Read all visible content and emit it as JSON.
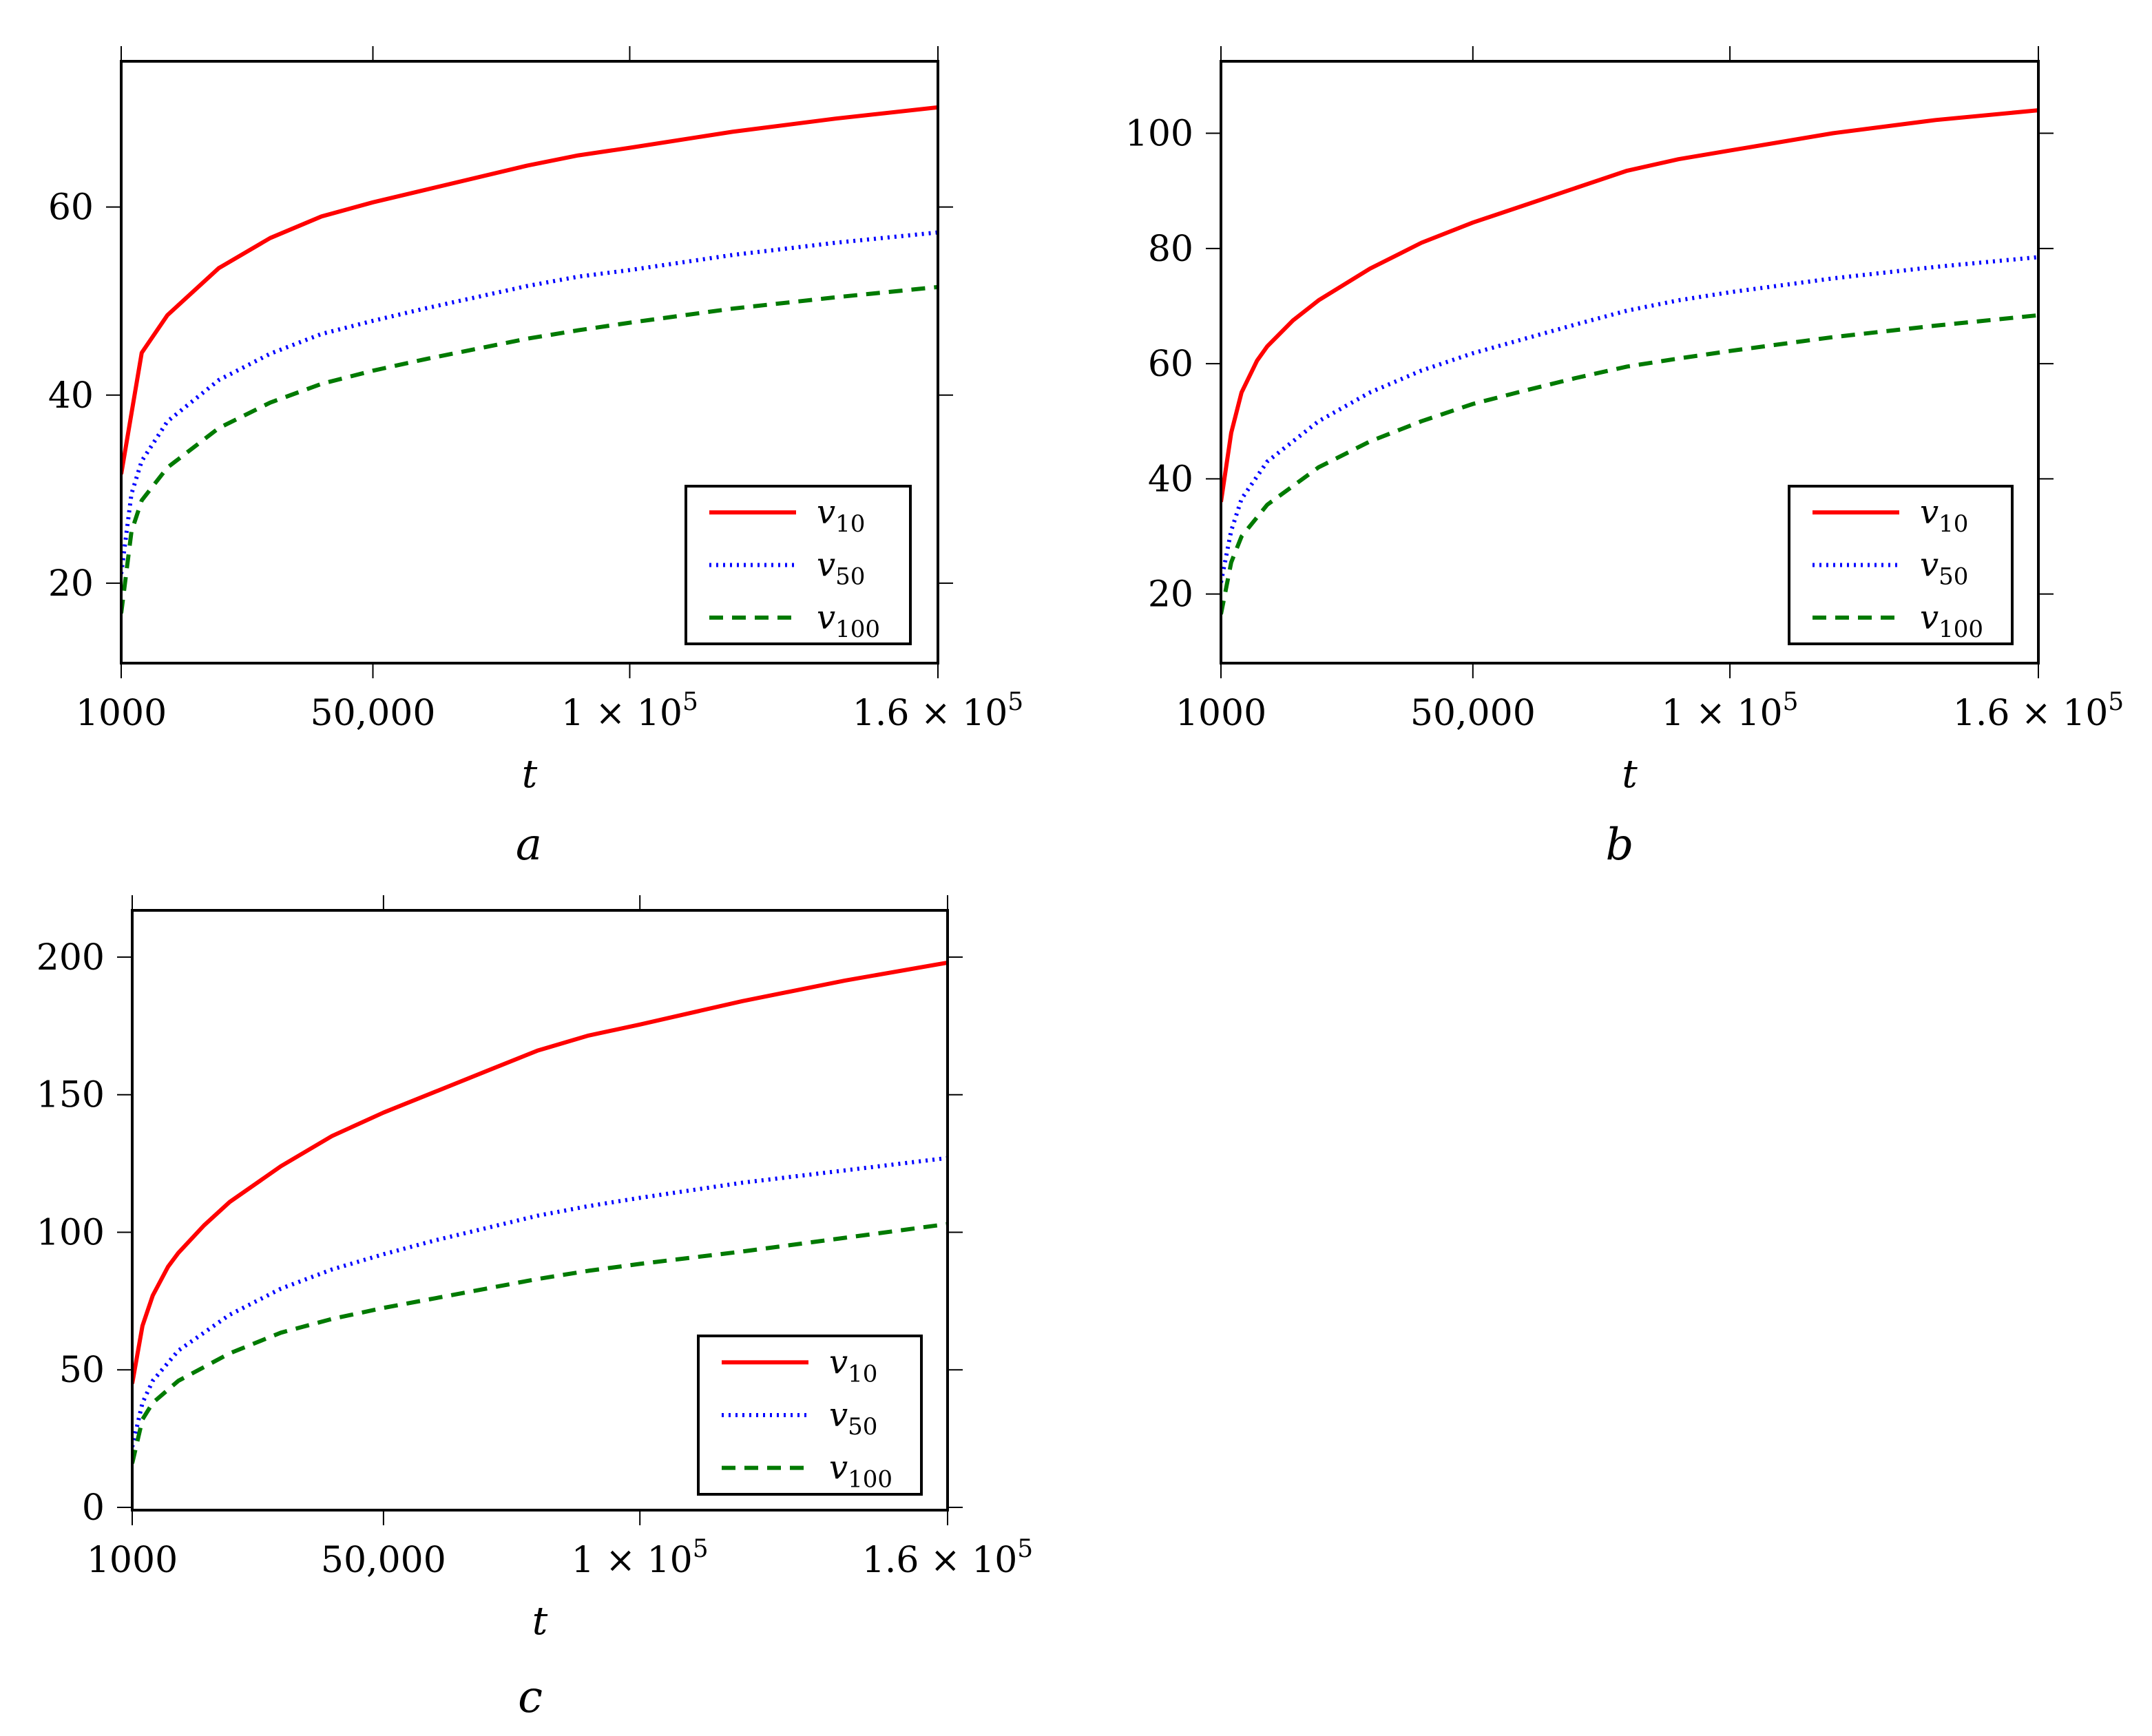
{
  "chart_data": [
    {
      "id": "a",
      "type": "line",
      "caption": "a",
      "xlabel": "t",
      "ylabel": "",
      "xlim": [
        1000,
        160000
      ],
      "ylim": [
        11.5,
        75.5
      ],
      "x_ticks": [
        {
          "value": 1000,
          "label": "1000",
          "math": false
        },
        {
          "value": 50000,
          "label": "50,000",
          "math": false
        },
        {
          "value": 100000,
          "label": "1 × 10^5",
          "mant": "1",
          "exp": "5",
          "math": true
        },
        {
          "value": 160000,
          "label": "1.6 × 10^5",
          "mant": "1.6",
          "exp": "5",
          "math": true
        }
      ],
      "y_ticks": [
        20,
        40,
        60
      ],
      "legend_position": "bottom-right",
      "series": [
        {
          "name": "v10",
          "base": "v",
          "sub": "10",
          "color": "#ff0000",
          "style": "solid",
          "x": [
            1000,
            5000,
            10000,
            20000,
            30000,
            40000,
            50000,
            60000,
            70000,
            80000,
            90000,
            100000,
            120000,
            140000,
            160000
          ],
          "y": [
            31.6,
            44.5,
            48.5,
            53.5,
            56.7,
            59.0,
            60.5,
            61.8,
            63.1,
            64.4,
            65.5,
            66.3,
            68.0,
            69.4,
            70.6
          ]
        },
        {
          "name": "v50",
          "base": "v",
          "sub": "50",
          "color": "#0000ff",
          "style": "dotted",
          "x": [
            1000,
            3000,
            5000,
            10000,
            20000,
            30000,
            40000,
            50000,
            60000,
            70000,
            80000,
            90000,
            100000,
            120000,
            140000,
            160000
          ],
          "y": [
            21.0,
            29.5,
            33.0,
            37.2,
            41.6,
            44.4,
            46.5,
            47.9,
            49.2,
            50.4,
            51.6,
            52.6,
            53.3,
            54.9,
            56.2,
            57.3
          ]
        },
        {
          "name": "v100",
          "base": "v",
          "sub": "100",
          "color": "#007a00",
          "style": "dashed",
          "x": [
            1000,
            3000,
            5000,
            10000,
            20000,
            30000,
            40000,
            50000,
            60000,
            70000,
            80000,
            90000,
            100000,
            120000,
            140000,
            160000
          ],
          "y": [
            16.8,
            25.5,
            28.8,
            32.3,
            36.5,
            39.2,
            41.2,
            42.6,
            43.8,
            44.9,
            46.0,
            46.9,
            47.7,
            49.2,
            50.4,
            51.5
          ]
        }
      ]
    },
    {
      "id": "b",
      "type": "line",
      "caption": "b",
      "xlabel": "t",
      "ylabel": "",
      "xlim": [
        1000,
        160000
      ],
      "ylim": [
        8,
        112.5
      ],
      "x_ticks": [
        {
          "value": 1000,
          "label": "1000",
          "math": false
        },
        {
          "value": 50000,
          "label": "50,000",
          "math": false
        },
        {
          "value": 100000,
          "label": "1 × 10^5",
          "mant": "1",
          "exp": "5",
          "math": true
        },
        {
          "value": 160000,
          "label": "1.6 × 10^5",
          "mant": "1.6",
          "exp": "5",
          "math": true
        }
      ],
      "y_ticks": [
        20,
        40,
        60,
        80,
        100
      ],
      "legend_position": "bottom-right",
      "series": [
        {
          "name": "v10",
          "base": "v",
          "sub": "10",
          "color": "#ff0000",
          "style": "solid",
          "x": [
            1000,
            3000,
            5000,
            8000,
            10000,
            15000,
            20000,
            30000,
            40000,
            50000,
            60000,
            70000,
            80000,
            90000,
            100000,
            120000,
            140000,
            160000
          ],
          "y": [
            36.0,
            48.0,
            55.0,
            60.5,
            63.0,
            67.5,
            71.0,
            76.5,
            81.0,
            84.5,
            87.5,
            90.5,
            93.5,
            95.5,
            97.0,
            100.0,
            102.3,
            104.0
          ]
        },
        {
          "name": "v50",
          "base": "v",
          "sub": "50",
          "color": "#0000ff",
          "style": "dotted",
          "x": [
            1000,
            3000,
            5000,
            10000,
            20000,
            30000,
            40000,
            50000,
            60000,
            70000,
            80000,
            90000,
            100000,
            120000,
            140000,
            160000
          ],
          "y": [
            22.0,
            31.0,
            36.5,
            43.0,
            50.0,
            55.0,
            58.8,
            61.8,
            64.3,
            66.8,
            69.2,
            71.0,
            72.4,
            74.8,
            76.8,
            78.5
          ]
        },
        {
          "name": "v100",
          "base": "v",
          "sub": "100",
          "color": "#007a00",
          "style": "dashed",
          "x": [
            1000,
            3000,
            5000,
            10000,
            20000,
            30000,
            40000,
            50000,
            60000,
            70000,
            80000,
            90000,
            100000,
            120000,
            140000,
            160000
          ],
          "y": [
            16.5,
            25.5,
            30.0,
            35.5,
            42.0,
            46.5,
            50.0,
            53.0,
            55.3,
            57.5,
            59.5,
            60.9,
            62.2,
            64.6,
            66.6,
            68.4
          ]
        }
      ]
    },
    {
      "id": "c",
      "type": "line",
      "caption": "c",
      "xlabel": "t",
      "ylabel": "",
      "xlim": [
        1000,
        160000
      ],
      "ylim": [
        -1,
        217
      ],
      "x_ticks": [
        {
          "value": 1000,
          "label": "1000",
          "math": false
        },
        {
          "value": 50000,
          "label": "50,000",
          "math": false
        },
        {
          "value": 100000,
          "label": "1 × 10^5",
          "mant": "1",
          "exp": "5",
          "math": true
        },
        {
          "value": 160000,
          "label": "1.6 × 10^5",
          "mant": "1.6",
          "exp": "5",
          "math": true
        }
      ],
      "y_ticks": [
        0,
        50,
        100,
        150,
        200
      ],
      "legend_position": "bottom-right",
      "series": [
        {
          "name": "v10",
          "base": "v",
          "sub": "10",
          "color": "#ff0000",
          "style": "solid",
          "x": [
            1000,
            3000,
            5000,
            8000,
            10000,
            15000,
            20000,
            30000,
            40000,
            50000,
            60000,
            70000,
            80000,
            90000,
            100000,
            120000,
            140000,
            160000
          ],
          "y": [
            45.0,
            66.0,
            77.0,
            87.5,
            92.5,
            102.5,
            111.0,
            124.0,
            135.0,
            143.5,
            151.0,
            158.5,
            166.0,
            171.5,
            175.5,
            184.0,
            191.5,
            198.0
          ]
        },
        {
          "name": "v50",
          "base": "v",
          "sub": "50",
          "color": "#0000ff",
          "style": "dotted",
          "x": [
            1000,
            3000,
            5000,
            10000,
            20000,
            30000,
            40000,
            50000,
            60000,
            70000,
            80000,
            90000,
            100000,
            120000,
            140000,
            160000
          ],
          "y": [
            22.0,
            38.0,
            46.0,
            57.0,
            70.0,
            79.5,
            86.5,
            92.0,
            97.0,
            101.5,
            106.0,
            109.5,
            112.5,
            118.0,
            122.5,
            127.0
          ]
        },
        {
          "name": "v100",
          "base": "v",
          "sub": "100",
          "color": "#007a00",
          "style": "dashed",
          "x": [
            1000,
            3000,
            5000,
            10000,
            20000,
            30000,
            40000,
            50000,
            60000,
            70000,
            80000,
            90000,
            100000,
            120000,
            140000,
            160000
          ],
          "y": [
            16.0,
            32.0,
            38.0,
            46.0,
            56.0,
            63.5,
            68.5,
            72.5,
            76.0,
            79.5,
            83.0,
            86.0,
            88.5,
            93.0,
            98.0,
            103.0
          ]
        }
      ]
    }
  ]
}
